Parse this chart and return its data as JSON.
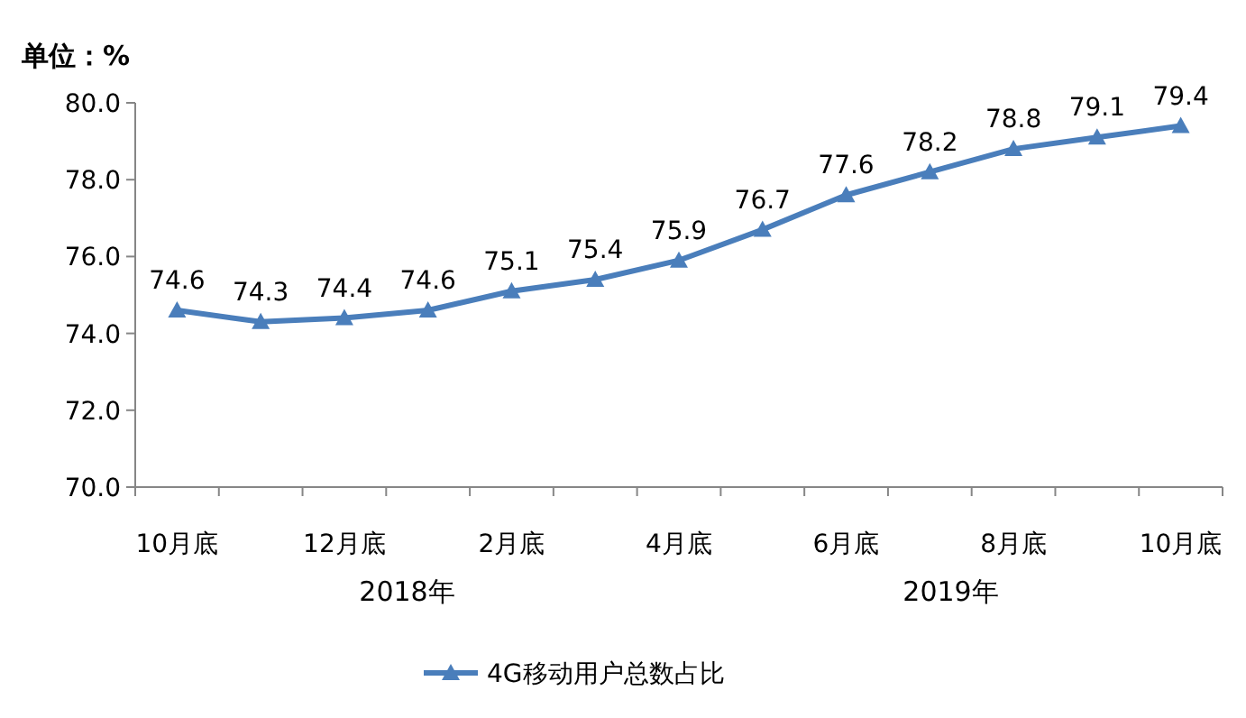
{
  "chart_data": {
    "type": "line",
    "ylabel": "单位：%",
    "categories": [
      "10月底",
      null,
      "12月底",
      null,
      "2月底",
      null,
      "4月底",
      null,
      "6月底",
      null,
      "8月底",
      null,
      "10月底"
    ],
    "series": [
      {
        "name": "4G移动用户总数占比",
        "color": "#4a7ebb",
        "values": [
          74.6,
          74.3,
          74.4,
          74.6,
          75.1,
          75.4,
          75.9,
          76.7,
          77.6,
          78.2,
          78.8,
          79.1,
          79.4
        ]
      }
    ],
    "ylim": [
      70,
      80
    ],
    "yticks": [
      {
        "value": 70,
        "label": "70.0"
      },
      {
        "value": 72,
        "label": "72.0"
      },
      {
        "value": 74,
        "label": "74.0"
      },
      {
        "value": 76,
        "label": "76.0"
      },
      {
        "value": 78,
        "label": "78.0"
      },
      {
        "value": 80,
        "label": "80.0"
      }
    ],
    "annotations": [
      "2018年",
      "2019年"
    ],
    "data_labels": true,
    "marker": "triangle",
    "line_style": "solid",
    "legend": "bottom"
  }
}
